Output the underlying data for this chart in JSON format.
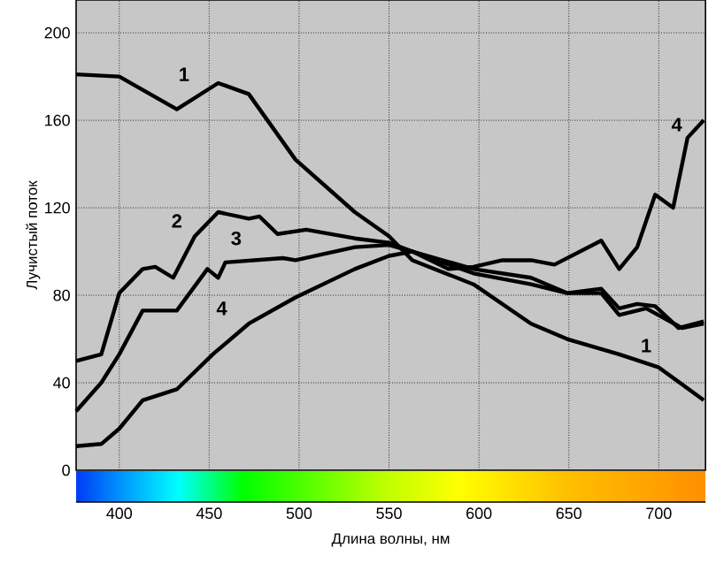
{
  "chart_data": {
    "type": "line",
    "xlabel": "Длина волны, нм",
    "ylabel": "Лучистый поток",
    "xlim": [
      376,
      726
    ],
    "ylim": [
      0,
      215
    ],
    "xticks": [
      400,
      450,
      500,
      550,
      600,
      650,
      700
    ],
    "yticks": [
      0,
      40,
      80,
      120,
      160,
      200
    ],
    "grid": true,
    "marker": "none",
    "line_style": "solid",
    "series": [
      {
        "name": "1",
        "color": "#000000",
        "x": [
          376,
          400,
          432,
          455,
          472,
          498,
          531,
          550,
          563,
          597,
          629,
          649,
          678,
          700,
          725
        ],
        "values": [
          181,
          180,
          165,
          177,
          172,
          142,
          118,
          107,
          96,
          85,
          67,
          60,
          53,
          47,
          32
        ]
      },
      {
        "name": "2",
        "color": "#000000",
        "x": [
          376,
          390,
          400,
          413,
          420,
          430,
          442,
          455,
          472,
          478,
          488,
          504,
          531,
          550,
          563,
          597,
          629,
          649,
          668,
          678,
          693,
          713,
          725
        ],
        "values": [
          50,
          53,
          81,
          92,
          93,
          88,
          107,
          118,
          115,
          116,
          108,
          110,
          106,
          104,
          100,
          92,
          88,
          81,
          81,
          71,
          74,
          65,
          67
        ]
      },
      {
        "name": "3",
        "color": "#000000",
        "x": [
          376,
          390,
          400,
          413,
          423,
          432,
          449,
          455,
          459,
          491,
          498,
          531,
          550,
          563,
          597,
          629,
          649,
          668,
          678,
          688,
          698,
          711,
          725
        ],
        "values": [
          27,
          40,
          53,
          73,
          73,
          73,
          92,
          88,
          95,
          97,
          96,
          102,
          103,
          100,
          90,
          85,
          81,
          83,
          74,
          76,
          75,
          65,
          68
        ]
      },
      {
        "name": "4",
        "color": "#000000",
        "x": [
          376,
          390,
          400,
          413,
          432,
          452,
          472,
          498,
          531,
          550,
          563,
          583,
          597,
          613,
          629,
          642,
          668,
          678,
          688,
          698,
          708,
          716,
          725
        ],
        "values": [
          11,
          12,
          19,
          32,
          37,
          53,
          67,
          79,
          92,
          98,
          100,
          92,
          93,
          96,
          96,
          94,
          105,
          92,
          102,
          126,
          120,
          152,
          160
        ]
      }
    ],
    "annotations": [
      "1",
      "4"
    ]
  }
}
